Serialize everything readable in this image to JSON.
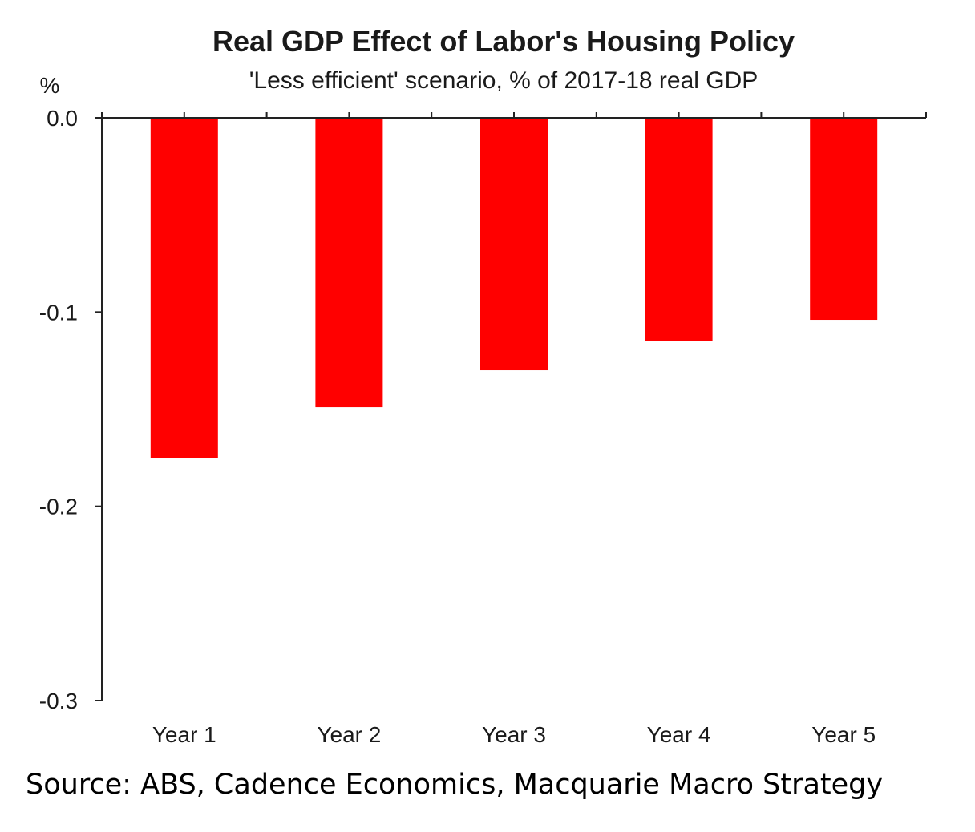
{
  "chart_data": {
    "type": "bar",
    "title": "Real GDP Effect of Labor's Housing Policy",
    "subtitle": "'Less efficient' scenario, % of 2017-18 real GDP",
    "ylabel": "%",
    "xlabel": "",
    "categories": [
      "Year 1",
      "Year 2",
      "Year 3",
      "Year 4",
      "Year 5"
    ],
    "values": [
      -0.175,
      -0.149,
      -0.13,
      -0.115,
      -0.104
    ],
    "ylim": [
      -0.3,
      0.0
    ],
    "yticks": [
      0.0,
      -0.1,
      -0.2,
      -0.3
    ],
    "ytick_labels": [
      "0.0",
      "-0.1",
      "-0.2",
      "-0.3"
    ],
    "bar_color": "#ff0000",
    "grid": false,
    "source": "Source: ABS, Cadence Economics, Macquarie Macro Strategy"
  }
}
